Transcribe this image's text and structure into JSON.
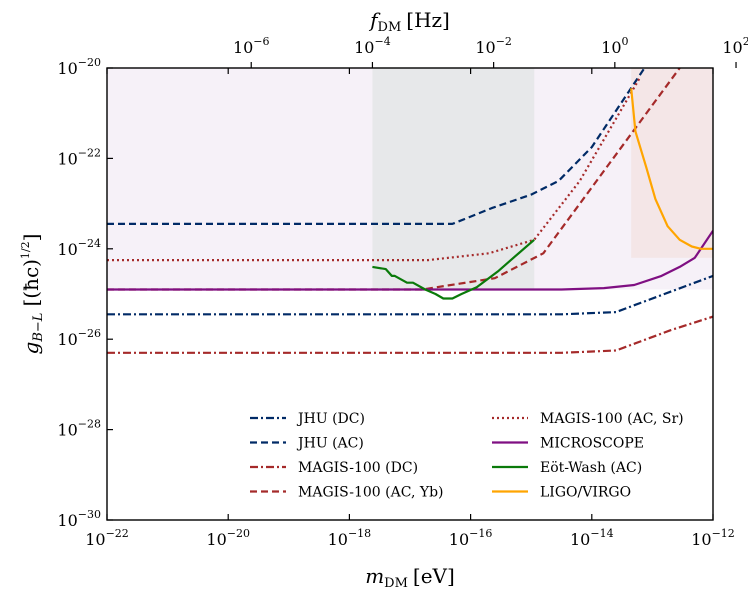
{
  "chart_data": {
    "type": "line",
    "xlabel_main": "m",
    "xlabel_sub": "DM",
    "xlabel_unit": "[eV]",
    "top_xlabel_main": "f",
    "top_xlabel_sub": "DM",
    "top_xlabel_unit": "[Hz]",
    "ylabel": "g_{B-L} [(ħc)^{1/2}]",
    "ylabel_main": "g",
    "ylabel_sub": "B−L",
    "ylabel_unit": "[(ħc)",
    "ylabel_exp": "1/2",
    "ylabel_close": "]",
    "xscale": "log",
    "yscale": "log",
    "xlim": [
      -22,
      -12
    ],
    "ylim": [
      -30,
      -20
    ],
    "x_ticks": [
      {
        "exp": -22,
        "base": "10",
        "label": "−22"
      },
      {
        "exp": -20,
        "base": "10",
        "label": "−20"
      },
      {
        "exp": -18,
        "base": "10",
        "label": "−18"
      },
      {
        "exp": -16,
        "base": "10",
        "label": "−16"
      },
      {
        "exp": -14,
        "base": "10",
        "label": "−14"
      },
      {
        "exp": -12,
        "base": "10",
        "label": "−12"
      }
    ],
    "y_ticks": [
      {
        "exp": -30,
        "base": "10",
        "label": "−30"
      },
      {
        "exp": -28,
        "base": "10",
        "label": "−28"
      },
      {
        "exp": -26,
        "base": "10",
        "label": "−26"
      },
      {
        "exp": -24,
        "base": "10",
        "label": "−24"
      },
      {
        "exp": -22,
        "base": "10",
        "label": "−22"
      },
      {
        "exp": -20,
        "base": "10",
        "label": "−20"
      }
    ],
    "top_ticks": [
      {
        "log_eV": -19.62,
        "base": "10",
        "label": "−6"
      },
      {
        "log_eV": -17.62,
        "base": "10",
        "label": "−4"
      },
      {
        "log_eV": -15.62,
        "base": "10",
        "label": "−2"
      },
      {
        "log_eV": -13.62,
        "base": "10",
        "label": "0"
      },
      {
        "log_eV": -11.62,
        "base": "10",
        "label": "2"
      }
    ],
    "regions": [
      {
        "x": [
          -22,
          -12
        ],
        "y_low": -24.9,
        "color": "#7b3f9e",
        "opacity": 0.07
      },
      {
        "x": [
          -17.62,
          -14.95
        ],
        "y_low": -24.9,
        "color": "#2e6b3a",
        "opacity": 0.07
      },
      {
        "x": [
          -13.35,
          -12
        ],
        "y_low": -24.2,
        "color": "#e8a070",
        "opacity": 0.12
      }
    ],
    "series": [
      {
        "name": "JHU (DC)",
        "color": "#002a66",
        "dash": "dashdot",
        "x": [
          -22,
          -14.5,
          -13.6,
          -13.2,
          -12.7,
          -12
        ],
        "y": [
          -25.45,
          -25.45,
          -25.4,
          -25.2,
          -24.95,
          -24.6
        ]
      },
      {
        "name": "JHU (AC)",
        "color": "#002a66",
        "dash": "dashed",
        "x": [
          -22,
          -16.3,
          -15.65,
          -15.0,
          -14.55,
          -14.0,
          -13.13
        ],
        "y": [
          -23.45,
          -23.45,
          -23.1,
          -22.8,
          -22.5,
          -21.75,
          -20.0
        ]
      },
      {
        "name": "MAGIS-100 (DC)",
        "color": "#a52a2a",
        "dash": "dashdot",
        "x": [
          -22,
          -14.5,
          -13.6,
          -13.2,
          -12.7,
          -12
        ],
        "y": [
          -26.3,
          -26.3,
          -26.25,
          -26.05,
          -25.8,
          -25.5
        ]
      },
      {
        "name": "MAGIS-100 (AC, Yb)",
        "color": "#a52a2a",
        "dash": "dashed",
        "x": [
          -22,
          -16.8,
          -15.6,
          -14.8,
          -12.55
        ],
        "y": [
          -24.9,
          -24.9,
          -24.65,
          -24.1,
          -20.0
        ]
      },
      {
        "name": "MAGIS-100 (AC, Sr)",
        "color": "#a52a2a",
        "dash": "dotted",
        "x": [
          -22,
          -16.7,
          -15.7,
          -14.95,
          -14.2,
          -13.2
        ],
        "y": [
          -24.25,
          -24.25,
          -24.1,
          -23.8,
          -22.5,
          -20.2
        ]
      },
      {
        "name": "MICROSCOPE",
        "color": "#7f0f82",
        "dash": "solid",
        "x": [
          -22,
          -14.5,
          -13.8,
          -13.3,
          -12.85,
          -12.55,
          -12.3,
          -12
        ],
        "y": [
          -24.9,
          -24.9,
          -24.87,
          -24.8,
          -24.6,
          -24.4,
          -24.2,
          -23.6
        ]
      },
      {
        "name": "Eöt-Wash (AC)",
        "color": "#0a7a0a",
        "dash": "solid",
        "x": [
          -17.62,
          -17.4,
          -17.3,
          -17.25,
          -17.05,
          -16.95,
          -16.75,
          -16.58,
          -16.45,
          -16.3,
          -16.15,
          -15.9,
          -15.55,
          -15.25,
          -14.95
        ],
        "y": [
          -24.4,
          -24.45,
          -24.6,
          -24.6,
          -24.75,
          -24.75,
          -24.9,
          -25.0,
          -25.1,
          -25.1,
          -25.0,
          -24.85,
          -24.5,
          -24.15,
          -23.8
        ]
      },
      {
        "name": "LIGO/VIRGO",
        "color": "#ffa500",
        "dash": "solid",
        "x": [
          -13.35,
          -13.28,
          -13.1,
          -12.95,
          -12.75,
          -12.55,
          -12.35,
          -12.2,
          -12.0
        ],
        "y": [
          -20.45,
          -21.4,
          -22.2,
          -22.9,
          -23.5,
          -23.8,
          -23.95,
          -24.0,
          -24.0
        ]
      }
    ],
    "legend": {
      "columns": [
        [
          "JHU (DC)",
          "JHU (AC)",
          "MAGIS-100 (DC)",
          "MAGIS-100 (AC, Yb)"
        ],
        [
          "MAGIS-100 (AC, Sr)",
          "MICROSCOPE",
          "Eöt-Wash (AC)",
          "LIGO/VIRGO"
        ]
      ]
    },
    "grid": false
  }
}
